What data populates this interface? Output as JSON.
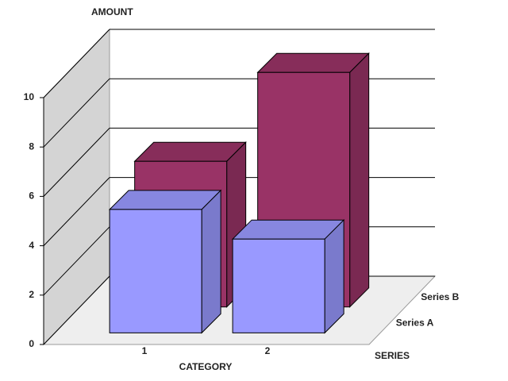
{
  "chart_data": {
    "type": "bar3d",
    "y_axis_label": "AMOUNT",
    "x_axis_label": "CATEGORY",
    "z_axis_label": "SERIES",
    "categories": [
      "1",
      "2"
    ],
    "series": [
      {
        "name": "Series A",
        "color": "#9999ff",
        "values": [
          5,
          3.8
        ]
      },
      {
        "name": "Series B",
        "color": "#993366",
        "values": [
          5.9,
          9.5
        ]
      }
    ],
    "ylim": [
      0,
      10
    ],
    "yticks": [
      0,
      2,
      4,
      6,
      8,
      10
    ],
    "grid": true
  }
}
